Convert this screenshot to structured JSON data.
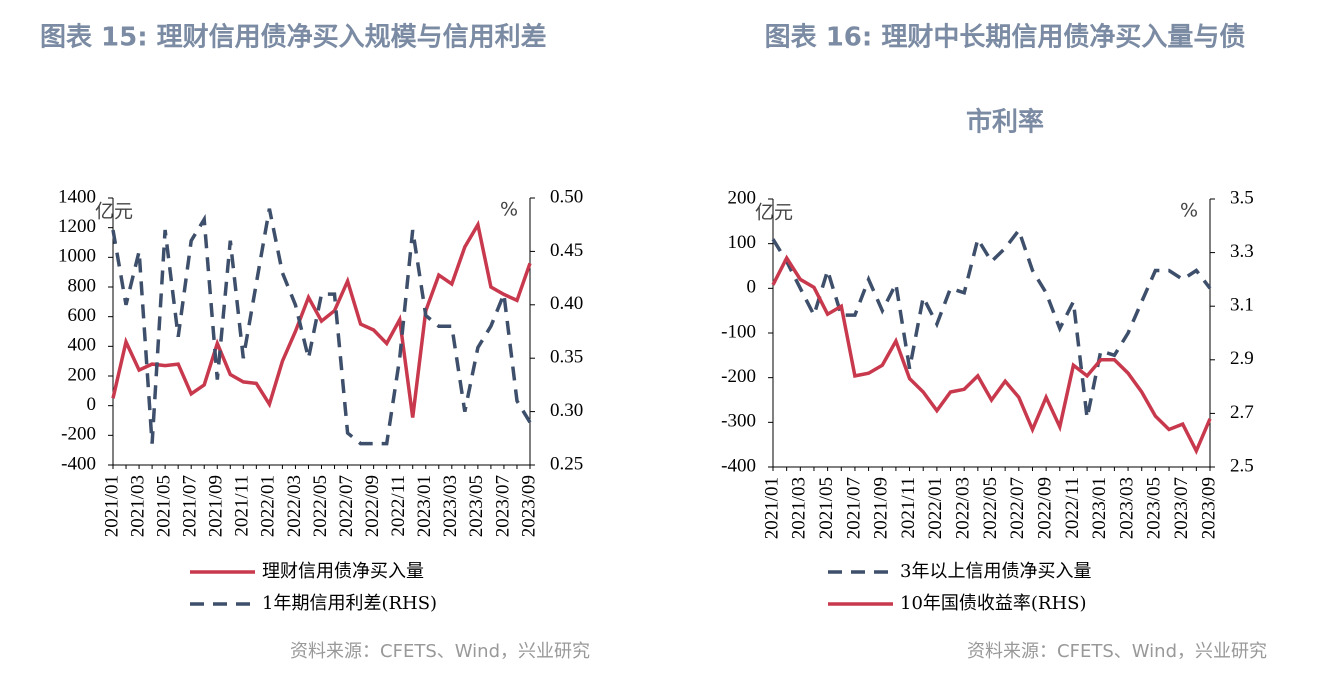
{
  "chart_data": [
    {
      "type": "line",
      "title": "图表 15: 理财信用债净买入规模与信用利差",
      "unit_left": "亿元",
      "unit_right": "%",
      "categories": [
        "2021/01",
        null,
        "2021/03",
        null,
        "2021/05",
        null,
        "2021/07",
        null,
        "2021/09",
        null,
        "2021/11",
        null,
        "2022/01",
        null,
        "2022/03",
        null,
        "2022/05",
        null,
        "2022/07",
        null,
        "2022/09",
        null,
        "2022/11",
        null,
        "2023/01",
        null,
        "2023/03",
        null,
        "2023/05",
        null,
        "2023/07",
        null,
        "2023/09"
      ],
      "ylim": [
        -400,
        1400
      ],
      "yticks": [
        -400,
        -200,
        0,
        200,
        400,
        600,
        800,
        1000,
        1200,
        1400
      ],
      "y2lim": [
        0.25,
        0.5
      ],
      "y2ticks": [
        0.25,
        {
          "value": 0.3,
          "label": "0.30"
        },
        0.35,
        {
          "value": 0.4,
          "label": "0.40"
        },
        0.45,
        {
          "value": 0.5,
          "label": "0.50"
        }
      ],
      "series": [
        {
          "name": "理财信用债净买入量",
          "color": "#c8394d",
          "style": "solid",
          "values": [
            50,
            430,
            240,
            280,
            270,
            280,
            80,
            140,
            420,
            210,
            160,
            150,
            10,
            300,
            500,
            730,
            570,
            640,
            840,
            550,
            510,
            420,
            580,
            -80,
            640,
            880,
            820,
            1070,
            1220,
            800,
            750,
            710,
            960
          ]
        },
        {
          "name": "1年期信用利差(RHS)",
          "color": "#3e4f6b",
          "style": "dashed",
          "axis": "y2",
          "values": [
            0.47,
            0.4,
            0.45,
            0.27,
            0.47,
            0.37,
            0.46,
            0.48,
            0.33,
            0.46,
            0.35,
            0.42,
            0.49,
            0.43,
            0.4,
            0.35,
            0.41,
            0.41,
            0.28,
            0.27,
            0.27,
            0.27,
            0.35,
            0.47,
            0.39,
            0.38,
            0.38,
            0.3,
            0.36,
            0.38,
            0.41,
            0.31,
            0.29
          ]
        }
      ],
      "source": "资料来源：CFETS、Wind，兴业研究"
    },
    {
      "type": "line",
      "title": [
        "图表 16: 理财中长期信用债净买入量与债",
        "市利率"
      ],
      "unit_left": "亿元",
      "unit_right": "%",
      "categories": [
        "2021/01",
        null,
        "2021/03",
        null,
        "2021/05",
        null,
        "2021/07",
        null,
        "2021/09",
        null,
        "2021/11",
        null,
        "2022/01",
        null,
        "2022/03",
        null,
        "2022/05",
        null,
        "2022/07",
        null,
        "2022/09",
        null,
        "2022/11",
        null,
        "2023/01",
        null,
        "2023/03",
        null,
        "2023/05",
        null,
        "2023/07",
        null,
        "2023/09"
      ],
      "ylim": [
        -400,
        200
      ],
      "yticks": [
        -400,
        -300,
        -200,
        -100,
        0,
        100,
        200
      ],
      "y2lim": [
        2.5,
        3.5
      ],
      "y2ticks": [
        2.5,
        2.7,
        2.9,
        3.1,
        3.3,
        3.5
      ],
      "series": [
        {
          "name": "3年以上信用债净买入量",
          "color": "#3e4f6b",
          "style": "dashed",
          "values": [
            110,
            60,
            0,
            -60,
            40,
            -60,
            -60,
            20,
            -50,
            10,
            -180,
            -20,
            -80,
            0,
            -10,
            110,
            60,
            90,
            130,
            40,
            -10,
            -90,
            -30,
            -290,
            -140,
            -150,
            -100,
            -30,
            40,
            40,
            20,
            40,
            0
          ]
        },
        {
          "name": "10年国债收益率(RHS)",
          "color": "#c8394d",
          "style": "solid",
          "axis": "y2",
          "values": [
            3.18,
            3.28,
            3.2,
            3.17,
            3.07,
            3.1,
            2.84,
            2.85,
            2.88,
            2.97,
            2.83,
            2.78,
            2.71,
            2.78,
            2.79,
            2.84,
            2.75,
            2.82,
            2.76,
            2.64,
            2.76,
            2.65,
            2.88,
            2.84,
            2.9,
            2.9,
            2.85,
            2.78,
            2.69,
            2.64,
            2.66,
            2.56,
            2.68
          ]
        }
      ],
      "source": "资料来源：CFETS、Wind，兴业研究"
    }
  ]
}
